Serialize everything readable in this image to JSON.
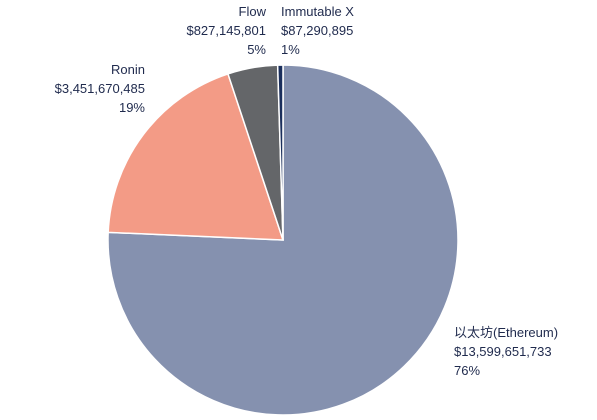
{
  "chart_data": {
    "type": "pie",
    "title": "",
    "slices": [
      {
        "name": "以太坊(Ethereum)",
        "value_label": "$13,599,651,733",
        "percent_label": "76%",
        "value": 13599651733,
        "color": "#8591af"
      },
      {
        "name": "Ronin",
        "value_label": "$3,451,670,485",
        "percent_label": "19%",
        "value": 3451670485,
        "color": "#f39b86"
      },
      {
        "name": "Flow",
        "value_label": "$827,145,801",
        "percent_label": "5%",
        "value": 827145801,
        "color": "#646669"
      },
      {
        "name": "Immutable X",
        "value_label": "$87,290,895",
        "percent_label": "1%",
        "value": 87290895,
        "color": "#1b2f5c"
      }
    ]
  }
}
